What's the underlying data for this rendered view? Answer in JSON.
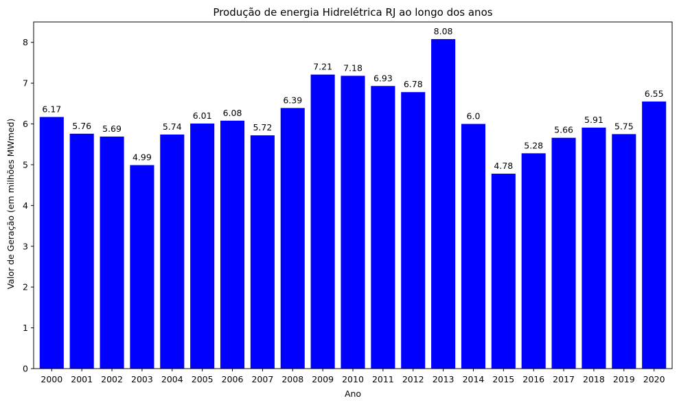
{
  "chart_data": {
    "type": "bar",
    "title": "Produção de energia Hidrelétrica RJ ao longo dos anos",
    "xlabel": "Ano",
    "ylabel": "Valor de Geração (em milhões MWmed)",
    "categories": [
      "2000",
      "2001",
      "2002",
      "2003",
      "2004",
      "2005",
      "2006",
      "2007",
      "2008",
      "2009",
      "2010",
      "2011",
      "2012",
      "2013",
      "2014",
      "2015",
      "2016",
      "2017",
      "2018",
      "2019",
      "2020"
    ],
    "values": [
      6.17,
      5.76,
      5.69,
      4.99,
      5.74,
      6.01,
      6.08,
      5.72,
      6.39,
      7.21,
      7.18,
      6.93,
      6.78,
      8.08,
      6.0,
      4.78,
      5.28,
      5.66,
      5.91,
      5.75,
      6.55
    ],
    "value_labels": [
      "6.17",
      "5.76",
      "5.69",
      "4.99",
      "5.74",
      "6.01",
      "6.08",
      "5.72",
      "6.39",
      "7.21",
      "7.18",
      "6.93",
      "6.78",
      "8.08",
      "6.0",
      "4.78",
      "5.28",
      "5.66",
      "5.91",
      "5.75",
      "6.55"
    ],
    "yticks": [
      "0",
      "1",
      "2",
      "3",
      "4",
      "5",
      "6",
      "7",
      "8"
    ],
    "ylim": [
      0,
      8.5
    ],
    "bar_color": "#0000ff",
    "grid": false,
    "legend": "none"
  }
}
